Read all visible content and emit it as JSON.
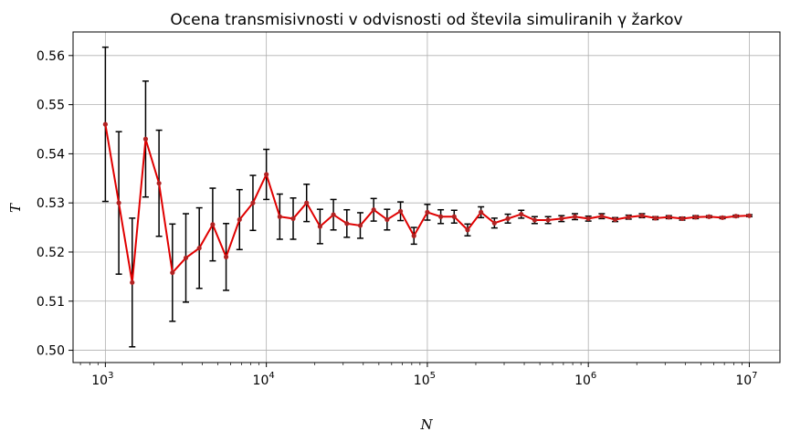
{
  "chart_data": {
    "type": "line",
    "title": "Ocena transmisivnosti v odvisnosti od števila simuliranih γ žarkov",
    "xlabel": "N",
    "ylabel": "T",
    "x_scale": "log",
    "xlim": [
      630,
      15500000
    ],
    "ylim": [
      0.4975,
      0.5648
    ],
    "x_ticks": [
      {
        "value": 1000,
        "base": "10",
        "exp": "3"
      },
      {
        "value": 10000,
        "base": "10",
        "exp": "4"
      },
      {
        "value": 100000,
        "base": "10",
        "exp": "5"
      },
      {
        "value": 1000000,
        "base": "10",
        "exp": "6"
      },
      {
        "value": 10000000,
        "base": "10",
        "exp": "7"
      }
    ],
    "y_ticks": [
      "0.50",
      "0.51",
      "0.52",
      "0.53",
      "0.54",
      "0.55",
      "0.56"
    ],
    "grid": true,
    "series": [
      {
        "line_color": "#e00000",
        "marker_color": "#b22222",
        "errorbar_color": "#000000",
        "x": [
          1000,
          1212,
          1468,
          1778,
          2154,
          2610,
          3162,
          3831,
          4642,
          5623,
          6813,
          8254,
          10000,
          12115,
          14678,
          17783,
          21544,
          26102,
          31623,
          38312,
          46416,
          56234,
          68129,
          82540,
          100000,
          121153,
          146780,
          177828,
          215443,
          261016,
          316228,
          383119,
          464159,
          562341,
          681292,
          825404,
          1000000,
          1211528,
          1467799,
          1778279,
          2154435,
          2610157,
          3162278,
          3831187,
          4641589,
          5623413,
          6812921,
          8254042,
          10000000
        ],
        "y": [
          0.546,
          0.53,
          0.5138,
          0.543,
          0.534,
          0.5158,
          0.5188,
          0.5208,
          0.5256,
          0.519,
          0.5266,
          0.53,
          0.5358,
          0.5272,
          0.5268,
          0.53,
          0.5252,
          0.5276,
          0.5258,
          0.5254,
          0.5286,
          0.5266,
          0.5283,
          0.5233,
          0.5281,
          0.5272,
          0.5272,
          0.5245,
          0.5281,
          0.5259,
          0.5268,
          0.5277,
          0.5265,
          0.5265,
          0.5268,
          0.5272,
          0.5268,
          0.5273,
          0.5266,
          0.5271,
          0.5274,
          0.5269,
          0.5271,
          0.5268,
          0.5271,
          0.5272,
          0.527,
          0.5273,
          0.5274
        ],
        "yerr": [
          0.0157,
          0.0145,
          0.0131,
          0.0118,
          0.0108,
          0.0099,
          0.009,
          0.0082,
          0.0074,
          0.0068,
          0.0061,
          0.0056,
          0.0051,
          0.0046,
          0.0042,
          0.0038,
          0.0035,
          0.0031,
          0.0028,
          0.0026,
          0.0023,
          0.0021,
          0.0019,
          0.0017,
          0.0016,
          0.0014,
          0.0013,
          0.0012,
          0.0011,
          0.001,
          0.0009,
          0.0008,
          0.0007,
          0.0007,
          0.0006,
          0.0006,
          0.0005,
          0.0005,
          0.0004,
          0.0004,
          0.0004,
          0.0003,
          0.0003,
          0.0003,
          0.0003,
          0.0002,
          0.0002,
          0.0002,
          0.0002
        ]
      }
    ]
  }
}
